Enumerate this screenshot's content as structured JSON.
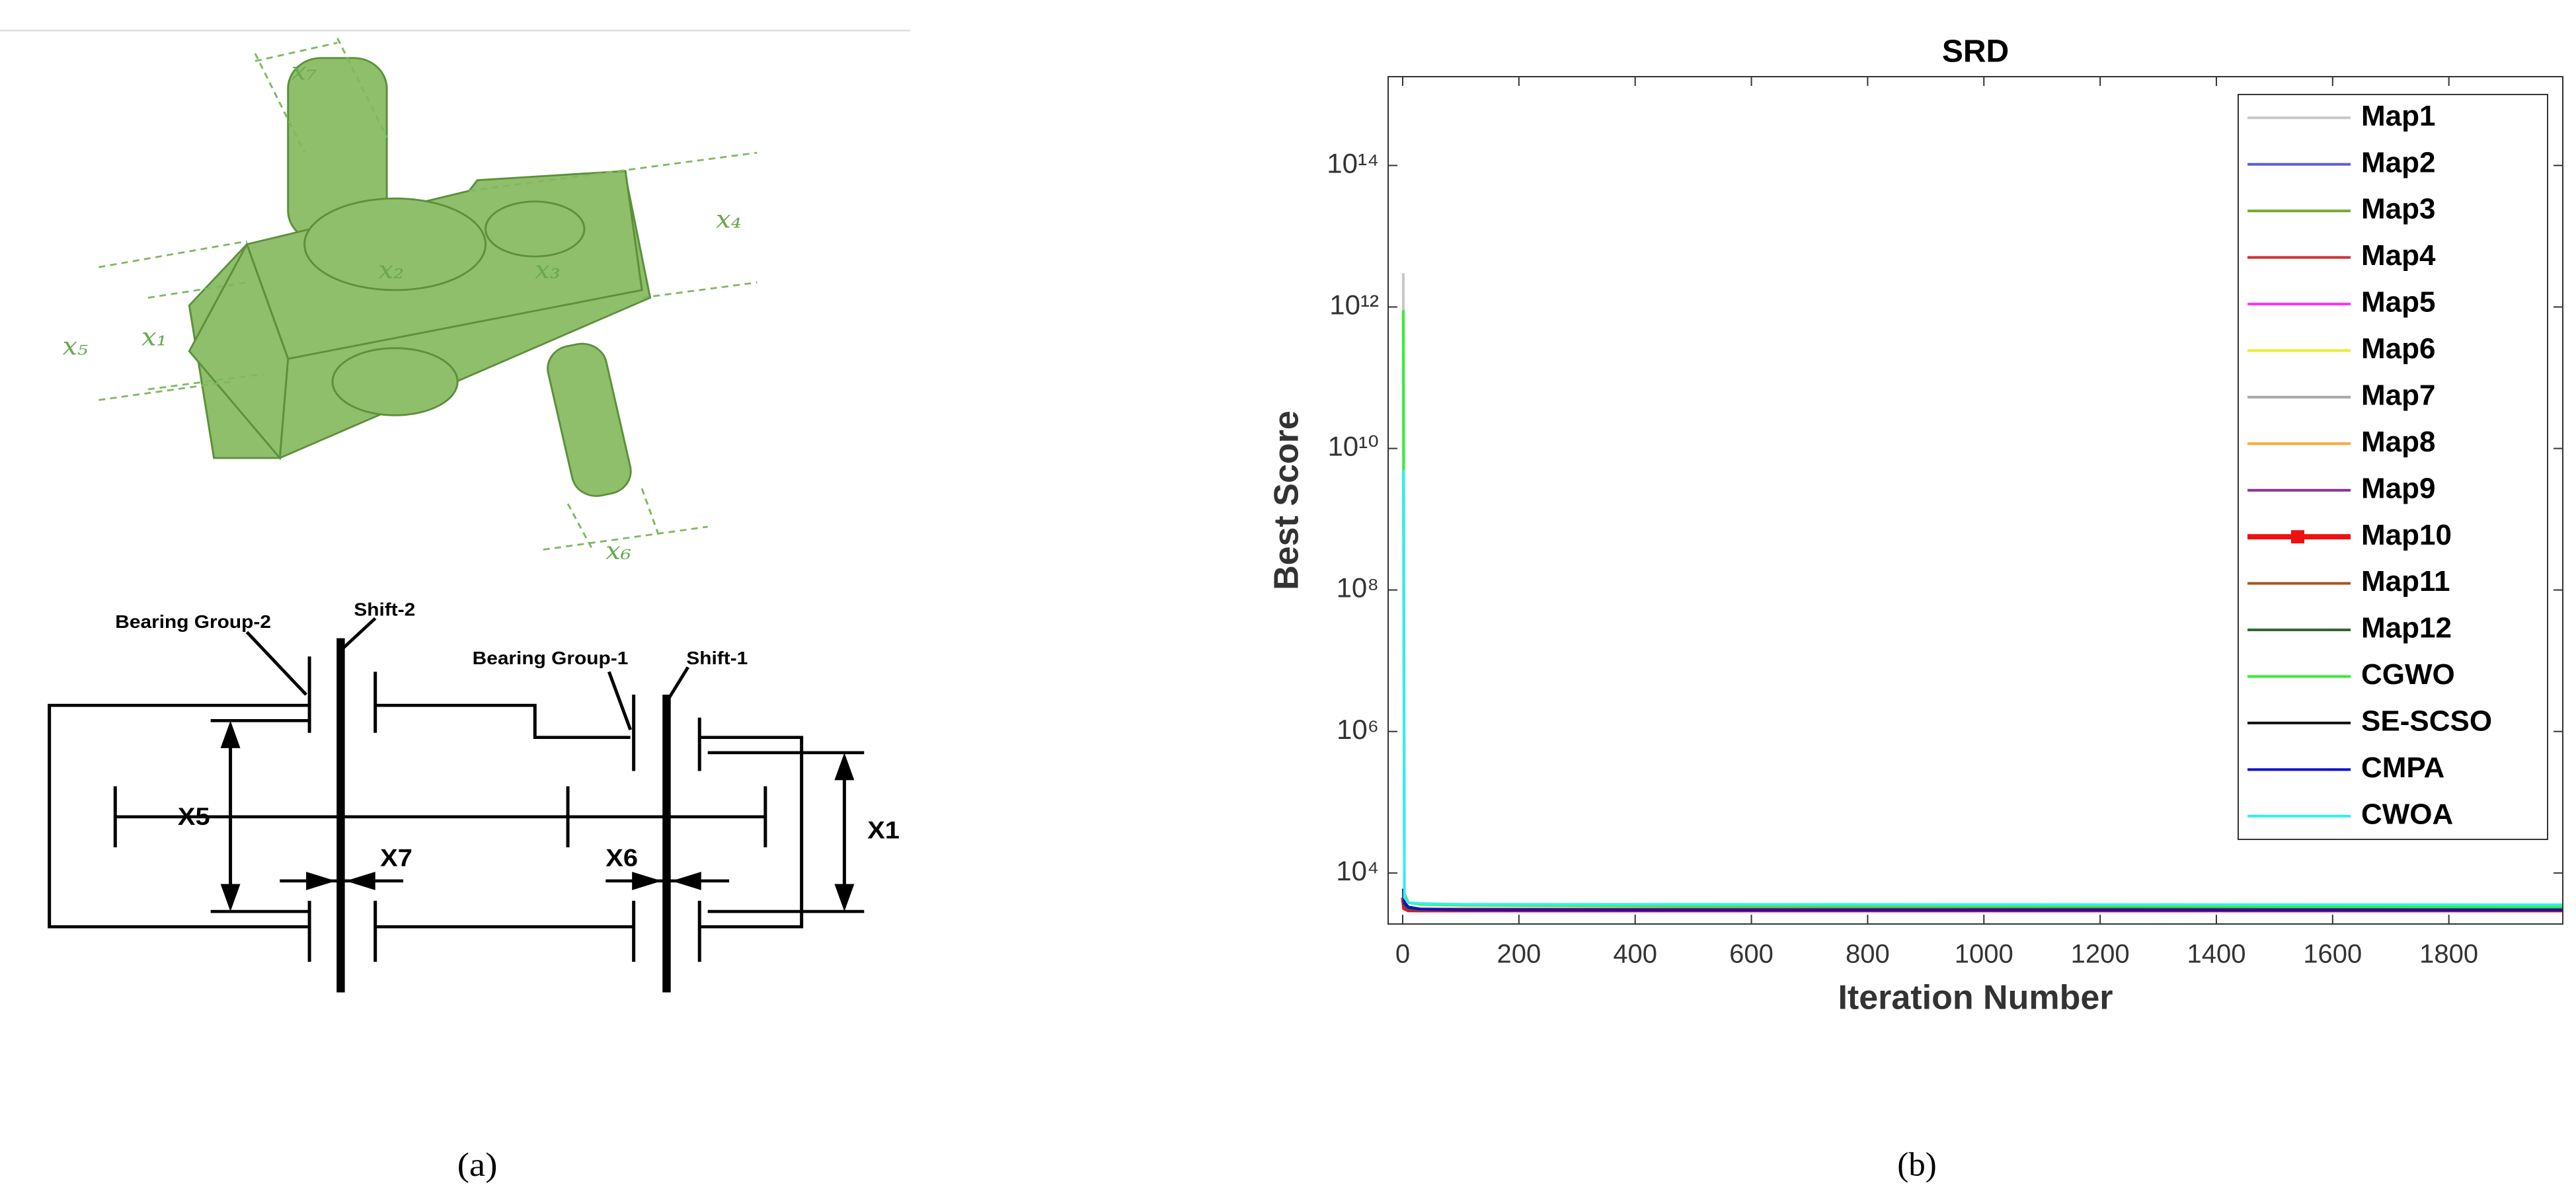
{
  "diagram": {
    "labels_3d": [
      "x₇",
      "x₄",
      "x₂",
      "x₃",
      "x₅",
      "x₁",
      "x₆"
    ],
    "schematic": {
      "bearing_group_2": "Bearing Group-2",
      "shift_2": "Shift-2",
      "bearing_group_1": "Bearing Group-1",
      "shift_1": "Shift-1",
      "x5": "X5",
      "x7": "X7",
      "x6": "X6",
      "x1": "X1"
    },
    "caption": "(a)"
  },
  "chart_data": {
    "type": "line",
    "title": "SRD",
    "x_label": "Iteration Number",
    "y_label": "Best Score",
    "caption": "(b)",
    "log_y": true,
    "grid": false,
    "x": [
      1,
      3,
      10,
      30,
      100,
      500,
      2000
    ],
    "xlim": [
      -25,
      1996
    ],
    "xticks": [
      0,
      200,
      400,
      600,
      800,
      1000,
      1200,
      1400,
      1600,
      1800
    ],
    "ylim": [
      1900,
      1800000000000000
    ],
    "yticks": [
      {
        "value": 10000,
        "label": "10⁴"
      },
      {
        "value": 1000000,
        "label": "10⁶"
      },
      {
        "value": 100000000,
        "label": "10⁸"
      },
      {
        "value": 10000000000,
        "label": "10¹⁰"
      },
      {
        "value": 1000000000000,
        "label": "10¹²"
      },
      {
        "value": 100000000000000,
        "label": "10¹⁴"
      }
    ],
    "series": [
      {
        "name": "Map1",
        "color": "#c8c8c8",
        "values": [
          3000000000000,
          4000,
          3200,
          3100,
          3000,
          2995,
          2994
        ]
      },
      {
        "name": "Map2",
        "color": "#5a5ae0",
        "values": [
          5000,
          3500,
          3100,
          3000,
          2995,
          2994,
          2994
        ]
      },
      {
        "name": "Map3",
        "color": "#77aa33",
        "values": [
          5200,
          3600,
          3150,
          3020,
          3000,
          2995,
          2994
        ]
      },
      {
        "name": "Map4",
        "color": "#cc3333",
        "values": [
          4800,
          3400,
          3050,
          3000,
          2995,
          2994,
          2994
        ]
      },
      {
        "name": "Map5",
        "color": "#ff33ff",
        "values": [
          5100,
          3500,
          3100,
          3010,
          2998,
          2995,
          2994
        ]
      },
      {
        "name": "Map6",
        "color": "#eeee33",
        "values": [
          4900,
          3450,
          3080,
          3005,
          2996,
          2994,
          2994
        ]
      },
      {
        "name": "Map7",
        "color": "#a8a8a8",
        "values": [
          5300,
          3700,
          3200,
          3050,
          3000,
          2996,
          2994
        ]
      },
      {
        "name": "Map8",
        "color": "#ffaa33",
        "values": [
          5000,
          3550,
          3120,
          3015,
          2999,
          2995,
          2994
        ]
      },
      {
        "name": "Map9",
        "color": "#883399",
        "values": [
          4700,
          3300,
          3040,
          3000,
          2995,
          2994,
          2994
        ]
      },
      {
        "name": "Map10",
        "color": "#ee1111",
        "marker": "square",
        "values": [
          4500,
          3200,
          3000,
          2990,
          2990,
          2990,
          2990
        ]
      },
      {
        "name": "Map11",
        "color": "#aa5522",
        "values": [
          5100,
          3600,
          3130,
          3020,
          3000,
          2995,
          2994
        ]
      },
      {
        "name": "Map12",
        "color": "#336633",
        "values": [
          4950,
          3480,
          3090,
          3008,
          2997,
          2994,
          2994
        ]
      },
      {
        "name": "CGWO",
        "color": "#33ee33",
        "values": [
          900000000000,
          5000,
          3800,
          3600,
          3500,
          3400,
          3300
        ]
      },
      {
        "name": "SE-SCSO",
        "color": "#111111",
        "values": [
          6000,
          3800,
          3300,
          3100,
          3020,
          3000,
          2996
        ]
      },
      {
        "name": "CMPA",
        "color": "#1111cc",
        "values": [
          5500,
          3700,
          3250,
          3080,
          3010,
          2998,
          2995
        ]
      },
      {
        "name": "CWOA",
        "color": "#33eeee",
        "values": [
          5000000000,
          4500,
          3800,
          3700,
          3600,
          3600,
          3550
        ]
      }
    ]
  }
}
